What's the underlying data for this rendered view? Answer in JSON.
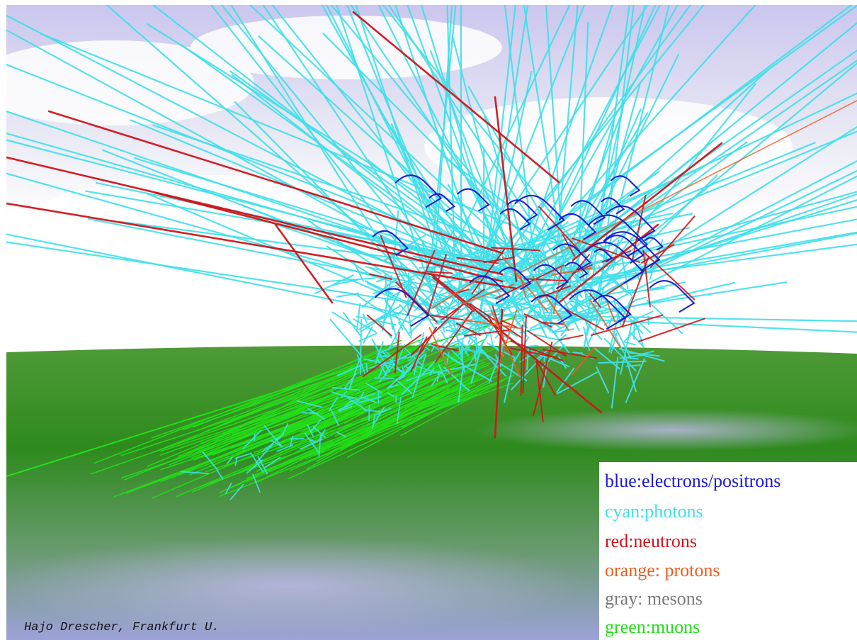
{
  "legend": {
    "items": [
      {
        "label": "blue:electrons/positrons",
        "color": "#1a1ad6"
      },
      {
        "label": "cyan:photons",
        "color": "#3fe0ea"
      },
      {
        "label": "red:neutrons",
        "color": "#d0141a"
      },
      {
        "label": "orange: protons",
        "color": "#f05a1c"
      },
      {
        "label": "gray: mesons",
        "color": "#7a7a7a"
      },
      {
        "label": "green:muons",
        "color": "#22e018"
      }
    ]
  },
  "credit": "Hajo Drescher, Frankfurt U.",
  "colors": {
    "sky_top": "#c4c2e8",
    "sky_bottom": "#ffffff",
    "ground_near": "#2f8a1e",
    "ground_far": "#4a9a30",
    "fog": "#a9a8d6"
  }
}
